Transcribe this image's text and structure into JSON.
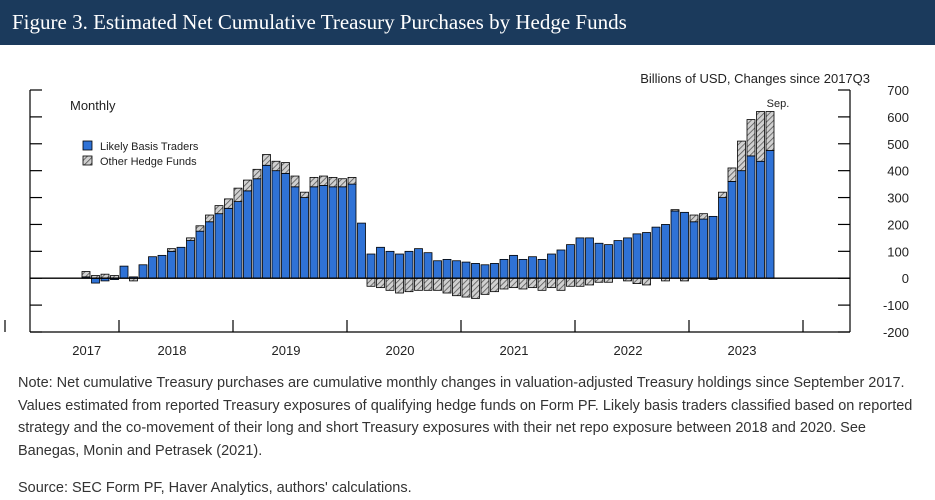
{
  "figure": {
    "title": "Figure 3. Estimated Net Cumulative Treasury Purchases by Hedge Funds",
    "note": "Note: Net cumulative Treasury purchases are cumulative monthly changes in valuation-adjusted Treasury holdings since September 2017. Values estimated from reported Treasury exposures of qualifying hedge funds on Form PF. Likely basis traders classified based on reported strategy and the co-movement of their long and short Treasury exposures with their net repo exposure between 2018 and 2020. See Banegas, Monin and Petrasek (2021).",
    "source": "Source: SEC Form PF, Haver Analytics, authors' calculations."
  },
  "colors": {
    "header_bg": "#1b3a5c",
    "basis": "#2f72d6",
    "other_fill": "#d0d0d0",
    "other_hatch": "#555555"
  },
  "chart_data": {
    "type": "bar",
    "stacked": true,
    "frequency_label": "Monthly",
    "unit_label": "Billions of USD, Changes since 2017Q3",
    "end_annotation": "Sep.",
    "ylim": [
      -200,
      700
    ],
    "yticks": [
      700,
      600,
      500,
      400,
      300,
      200,
      100,
      0,
      -100,
      -200
    ],
    "year_labels": [
      "2017",
      "2018",
      "2019",
      "2020",
      "2021",
      "2022",
      "2023"
    ],
    "legend": [
      "Likely Basis Traders",
      "Other Hedge Funds"
    ],
    "months": [
      "2017-09",
      "2017-10",
      "2017-11",
      "2017-12",
      "2018-01",
      "2018-02",
      "2018-03",
      "2018-04",
      "2018-05",
      "2018-06",
      "2018-07",
      "2018-08",
      "2018-09",
      "2018-10",
      "2018-11",
      "2018-12",
      "2019-01",
      "2019-02",
      "2019-03",
      "2019-04",
      "2019-05",
      "2019-06",
      "2019-07",
      "2019-08",
      "2019-09",
      "2019-10",
      "2019-11",
      "2019-12",
      "2020-01",
      "2020-02",
      "2020-03",
      "2020-04",
      "2020-05",
      "2020-06",
      "2020-07",
      "2020-08",
      "2020-09",
      "2020-10",
      "2020-11",
      "2020-12",
      "2021-01",
      "2021-02",
      "2021-03",
      "2021-04",
      "2021-05",
      "2021-06",
      "2021-07",
      "2021-08",
      "2021-09",
      "2021-10",
      "2021-11",
      "2021-12",
      "2022-01",
      "2022-02",
      "2022-03",
      "2022-04",
      "2022-05",
      "2022-06",
      "2022-07",
      "2022-08",
      "2022-09",
      "2022-10",
      "2022-11",
      "2022-12",
      "2023-01",
      "2023-02",
      "2023-03",
      "2023-04",
      "2023-05",
      "2023-06",
      "2023-07",
      "2023-08",
      "2023-09"
    ],
    "series": [
      {
        "name": "Likely Basis Traders",
        "values": [
          5,
          -18,
          -10,
          -5,
          45,
          5,
          50,
          80,
          85,
          100,
          115,
          140,
          175,
          210,
          240,
          260,
          285,
          325,
          370,
          420,
          400,
          390,
          340,
          300,
          340,
          345,
          340,
          340,
          350,
          205,
          90,
          115,
          100,
          90,
          100,
          110,
          95,
          65,
          70,
          65,
          60,
          55,
          50,
          55,
          70,
          85,
          70,
          80,
          70,
          90,
          105,
          125,
          150,
          150,
          130,
          125,
          140,
          150,
          165,
          170,
          190,
          200,
          250,
          245,
          210,
          220,
          230,
          300,
          360,
          400,
          455,
          435,
          475
        ]
      },
      {
        "name": "Other Hedge Funds",
        "values": [
          20,
          10,
          15,
          10,
          0,
          -10,
          0,
          0,
          0,
          10,
          0,
          10,
          20,
          25,
          30,
          35,
          50,
          40,
          35,
          40,
          35,
          40,
          40,
          20,
          35,
          35,
          35,
          30,
          25,
          0,
          -30,
          -35,
          -45,
          -55,
          -50,
          -45,
          -45,
          -45,
          -55,
          -65,
          -70,
          -75,
          -60,
          -50,
          -40,
          -35,
          -40,
          -35,
          -45,
          -35,
          -45,
          -30,
          -30,
          -25,
          -15,
          -15,
          0,
          -10,
          -20,
          -25,
          0,
          -10,
          5,
          -10,
          25,
          20,
          -5,
          20,
          50,
          110,
          135,
          185,
          145
        ]
      }
    ]
  }
}
